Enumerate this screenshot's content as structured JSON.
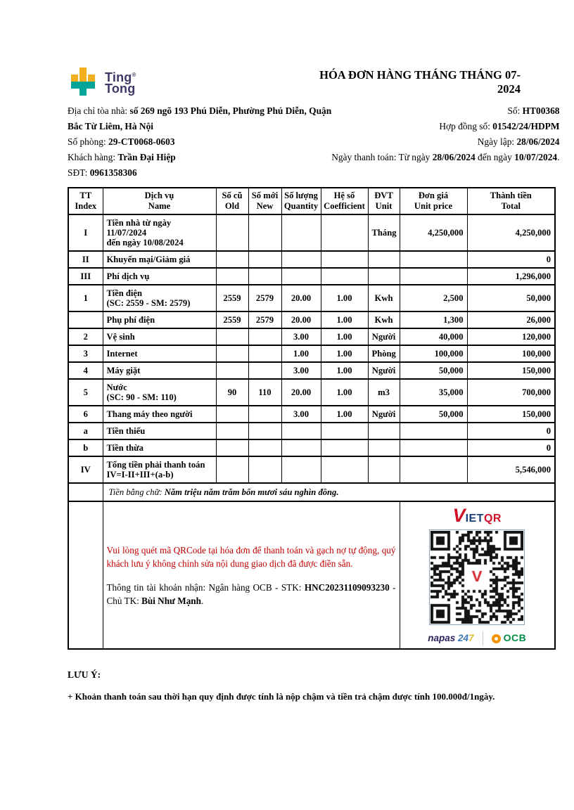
{
  "logo": {
    "word1": "Ting",
    "word2": "Tong",
    "mark": "®"
  },
  "title": "HÓA ĐƠN HÀNG THÁNG THÁNG 07-\n2024",
  "info": {
    "address_label": "Địa chỉ tòa nhà: ",
    "address_line1": "số 269 ngõ 193 Phú Diễn, Phường Phú Diễn, Quận",
    "address_line2": "Bắc Từ Liêm, Hà Nội",
    "room_label": "Số phòng: ",
    "room_value": "29-CT0068-0603",
    "customer_label": "Khách hàng: ",
    "customer_value": "Trần Đại Hiệp",
    "phone_label": "SĐT: ",
    "phone_value": "0961358306",
    "invoice_no_label": "Số: ",
    "invoice_no_value": "HT00368",
    "contract_label": "Hợp đồng số: ",
    "contract_value": "01542/24/HDPM",
    "issue_date_label": "Ngày lập: ",
    "issue_date_value": "28/06/2024",
    "pay_date_label": "Ngày thanh toán: Từ ngày ",
    "pay_date_from": "28/06/2024",
    "pay_date_mid": " đến ngày ",
    "pay_date_to": "10/07/2024",
    "pay_date_suffix": "."
  },
  "table": {
    "headers": [
      [
        "TT",
        "Index"
      ],
      [
        "Dịch vụ",
        "Name"
      ],
      [
        "Số cũ",
        "Old"
      ],
      [
        "Số mới",
        "New"
      ],
      [
        "Số lượng",
        "Quantity"
      ],
      [
        "Hệ số",
        "Coefficient"
      ],
      [
        "ĐVT",
        "Unit"
      ],
      [
        "Đơn giá",
        "Unit price"
      ],
      [
        "Thành tiền",
        "Total"
      ]
    ],
    "rows": [
      [
        "I",
        "Tiền nhà từ ngày 11/07/2024\nđến ngày 10/08/2024",
        "",
        "",
        "",
        "",
        "Tháng",
        "4,250,000",
        "4,250,000"
      ],
      [
        "II",
        "Khuyến mại/Giảm giá",
        "",
        "",
        "",
        "",
        "",
        "",
        "0"
      ],
      [
        "III",
        "Phí dịch vụ",
        "",
        "",
        "",
        "",
        "",
        "",
        "1,296,000"
      ],
      [
        "1",
        "Tiền điện\n(SC: 2559 - SM: 2579)",
        "2559",
        "2579",
        "20.00",
        "1.00",
        "Kwh",
        "2,500",
        "50,000"
      ],
      [
        "",
        "Phụ phí điện",
        "2559",
        "2579",
        "20.00",
        "1.00",
        "Kwh",
        "1,300",
        "26,000"
      ],
      [
        "2",
        "Vệ sinh",
        "",
        "",
        "3.00",
        "1.00",
        "Người",
        "40,000",
        "120,000"
      ],
      [
        "3",
        "Internet",
        "",
        "",
        "1.00",
        "1.00",
        "Phòng",
        "100,000",
        "100,000"
      ],
      [
        "4",
        "Máy giặt",
        "",
        "",
        "3.00",
        "1.00",
        "Người",
        "50,000",
        "150,000"
      ],
      [
        "5",
        "Nước\n(SC: 90 - SM: 110)",
        "90",
        "110",
        "20.00",
        "1.00",
        "m3",
        "35,000",
        "700,000"
      ],
      [
        "6",
        "Thang máy theo người",
        "",
        "",
        "3.00",
        "1.00",
        "Người",
        "50,000",
        "150,000"
      ],
      [
        "a",
        "Tiền thiếu",
        "",
        "",
        "",
        "",
        "",
        "",
        "0"
      ],
      [
        "b",
        "Tiền thừa",
        "",
        "",
        "",
        "",
        "",
        "",
        "0"
      ],
      [
        "IV",
        "Tổng tiền phải thanh toán\nIV=I-II+III+(a-b)",
        "",
        "",
        "",
        "",
        "",
        "",
        "5,546,000"
      ]
    ],
    "amount_in_words_label": "Tiền bằng chữ: ",
    "amount_in_words": "Năm triệu năm trăm bốn mươi sáu nghìn đồng."
  },
  "payment": {
    "notice": "Vui lòng quét mã QRCode tại hóa đơn để thanh toán và gạch nợ tự động, quý khách lưu ý không chỉnh sửa nội dung giao dịch đã được điền sẵn.",
    "account_prefix": "Thông tin tài khoản nhận: Ngân hàng OCB - STK: ",
    "account_number": "HNC20231109093230",
    "account_mid": " - Chủ TK: ",
    "account_holder": "Bùi Như Mạnh",
    "account_suffix": ".",
    "vietqr_v": "V",
    "vietqr_iet": "IET",
    "vietqr_qr": "QR",
    "napas_brand": "napas ",
    "napas_24": "24",
    "napas_7": "7",
    "ocb_name": "OCB"
  },
  "footer": {
    "note_title": "LƯU Ý:",
    "note_line": "+ Khoản thanh toán sau thời hạn quy định được tính là nộp chậm và tiền trả chậm được tính 100.000đ/1ngày."
  },
  "colors": {
    "brand_yellow": "#F2B01E",
    "brand_teal": "#00A499",
    "brand_navy": "#3E3866",
    "notice_red": "#C00000",
    "vietqr_red": "#CE1126",
    "vietqr_navy": "#1B3F77",
    "napas_navy": "#29235C",
    "napas_blue": "#3C77B5",
    "napas_yellow": "#D9C235",
    "ocb_orange": "#F29200",
    "ocb_green": "#008C44"
  }
}
